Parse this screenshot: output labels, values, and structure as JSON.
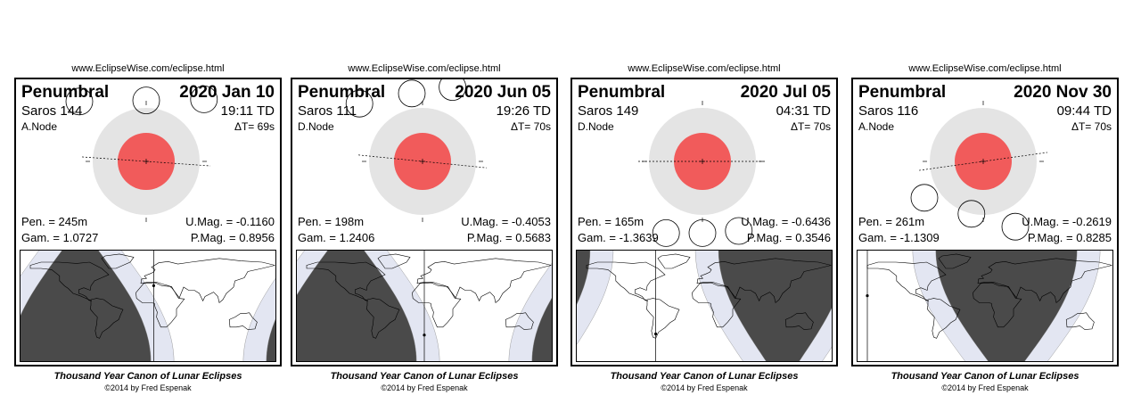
{
  "footer_title": "Thousand Year Canon of Lunar Eclipses",
  "footer_credit": "©2014 by Fred Espenak",
  "colors": {
    "umbra": "#f15b5b",
    "penumbra": "#e4e4e4",
    "night": "#4a4a4a",
    "penumbral_zone": "#e3e6f2"
  },
  "eclipses": [
    {
      "url": "www.EclipseWise.com/eclipse.html",
      "type": "Penumbral",
      "date": "2020 Jan 10",
      "saros": "Saros 144",
      "time": "19:11 TD",
      "node": "A.Node",
      "delta_t": "ΔT=      69s",
      "pen": "Pen. = 245m",
      "gam": "Gam. = 1.0727",
      "umag": "U.Mag. = -0.1160",
      "pmag": "P.Mag. = 0.8956",
      "moon_path": [
        [
          -1.25,
          1.12
        ],
        [
          0,
          1.14
        ],
        [
          1.08,
          1.16
        ]
      ],
      "ecliptic_tilt": -0.07,
      "night": {
        "center_lon": -95,
        "width": 0.55,
        "north_dark": true
      },
      "greatest_lon": 8,
      "greatest_lat": 0.36
    },
    {
      "url": "www.EclipseWise.com/eclipse.html",
      "type": "Penumbral",
      "date": "2020 Jun 05",
      "saros": "Saros 111",
      "time": "19:26 TD",
      "node": "D.Node",
      "delta_t": "ΔT=      70s",
      "pen": "Pen. = 198m",
      "gam": "Gam. = 1.2406",
      "umag": "U.Mag. = -0.4053",
      "pmag": "P.Mag. = 0.5683",
      "moon_path": [
        [
          -1.18,
          1.08
        ],
        [
          -0.2,
          1.27
        ],
        [
          0.56,
          1.39
        ]
      ],
      "ecliptic_tilt": -0.1,
      "night": {
        "center_lon": -110,
        "width": 0.55,
        "north_dark": true
      },
      "greatest_lon": 0,
      "greatest_lat": -0.52
    },
    {
      "url": "www.EclipseWise.com/eclipse.html",
      "type": "Penumbral",
      "date": "2020 Jul 05",
      "saros": "Saros 149",
      "time": "04:31 TD",
      "node": "D.Node",
      "delta_t": "ΔT=      70s",
      "pen": "Pen. = 165m",
      "gam": "Gam. = -1.3639",
      "umag": "U.Mag. = -0.6436",
      "pmag": "P.Mag. = 0.3546",
      "moon_path": [
        [
          -0.68,
          -1.34
        ],
        [
          0,
          -1.34
        ],
        [
          0.68,
          -1.3
        ]
      ],
      "ecliptic_tilt": 0,
      "night": {
        "center_lon": 110,
        "width": 0.5,
        "north_dark": false
      },
      "greatest_lon": -68,
      "greatest_lat": -0.5
    },
    {
      "url": "www.EclipseWise.com/eclipse.html",
      "type": "Penumbral",
      "date": "2020 Nov 30",
      "saros": "Saros 116",
      "time": "09:44 TD",
      "node": "A.Node",
      "delta_t": "ΔT=      70s",
      "pen": "Pen. = 261m",
      "gam": "Gam. = -1.1309",
      "umag": "U.Mag. = -0.2619",
      "pmag": "P.Mag. = 0.8285",
      "moon_path": [
        [
          -1.1,
          -0.68
        ],
        [
          -0.22,
          -0.98
        ],
        [
          0.6,
          -1.22
        ]
      ],
      "ecliptic_tilt": 0.14,
      "night": {
        "center_lon": 30,
        "width": 0.55,
        "north_dark": false
      },
      "greatest_lon": -165,
      "greatest_lat": 0.18
    }
  ]
}
